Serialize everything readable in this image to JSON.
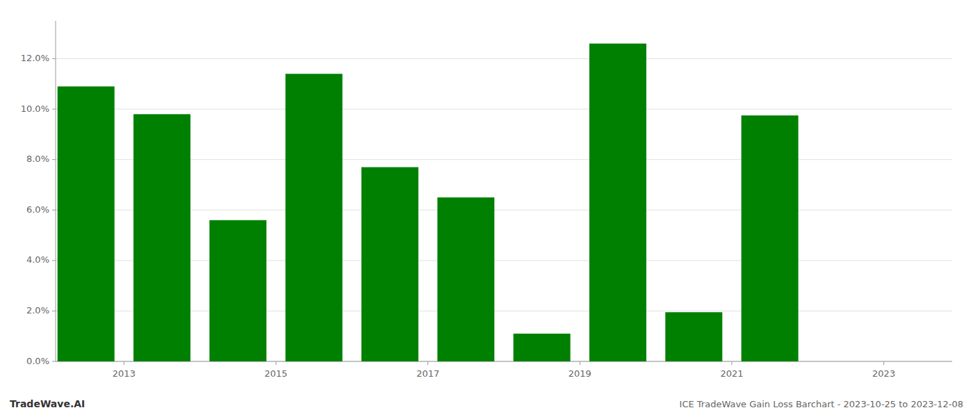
{
  "chart_data": {
    "type": "bar",
    "x": [
      2013,
      2014,
      2015,
      2016,
      2017,
      2018,
      2019,
      2020,
      2021,
      2022
    ],
    "values": [
      0.109,
      0.098,
      0.056,
      0.114,
      0.077,
      0.065,
      0.011,
      0.126,
      0.0195,
      0.0975
    ],
    "color": "#008000",
    "xlim": [
      2012.6,
      2024.4
    ],
    "xticks": [
      {
        "value": 2013.5,
        "label": "2013"
      },
      {
        "value": 2015.5,
        "label": "2015"
      },
      {
        "value": 2017.5,
        "label": "2017"
      },
      {
        "value": 2019.5,
        "label": "2019"
      },
      {
        "value": 2021.5,
        "label": "2021"
      },
      {
        "value": 2023.5,
        "label": "2023"
      }
    ],
    "ylim": [
      0,
      0.135
    ],
    "yticks": [
      {
        "value": 0.0,
        "label": "0.0%"
      },
      {
        "value": 0.02,
        "label": "2.0%"
      },
      {
        "value": 0.04,
        "label": "4.0%"
      },
      {
        "value": 0.06,
        "label": "6.0%"
      },
      {
        "value": 0.08,
        "label": "8.0%"
      },
      {
        "value": 0.1,
        "label": "10.0%"
      },
      {
        "value": 0.12,
        "label": "12.0%"
      }
    ],
    "grid": true,
    "annotations": [
      "TradeWave.AI",
      "ICE TradeWave Gain Loss Barchart - 2023-10-25 to 2023-12-08"
    ]
  }
}
